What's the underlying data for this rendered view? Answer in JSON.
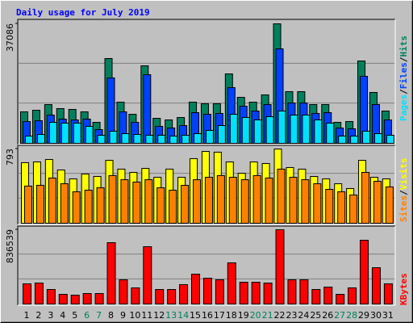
{
  "chart_data": {
    "type": "bar",
    "title": "Daily usage for July 2019",
    "title_color": "#0000ff",
    "categories": [
      "1",
      "2",
      "3",
      "4",
      "5",
      "6",
      "7",
      "8",
      "9",
      "10",
      "11",
      "12",
      "13",
      "14",
      "15",
      "16",
      "17",
      "18",
      "19",
      "20",
      "21",
      "22",
      "23",
      "24",
      "25",
      "26",
      "27",
      "28",
      "29",
      "30",
      "31"
    ],
    "category_colors": [
      "#000000",
      "#000000",
      "#000000",
      "#000000",
      "#000000",
      "#00805c",
      "#00805c",
      "#000000",
      "#000000",
      "#000000",
      "#000000",
      "#000000",
      "#00805c",
      "#00805c",
      "#000000",
      "#000000",
      "#000000",
      "#000000",
      "#000000",
      "#00805c",
      "#00805c",
      "#000000",
      "#000000",
      "#000000",
      "#000000",
      "#000000",
      "#00805c",
      "#00805c",
      "#000000",
      "#000000",
      "#000000"
    ],
    "legend_separator": "/",
    "grid": true,
    "panels": [
      {
        "ylim": [
          0,
          37086
        ],
        "yticks": [
          37086
        ],
        "series": [
          {
            "name": "Hits",
            "color": "#00805c",
            "values": [
              9773,
              10274,
              12028,
              10775,
              10524,
              9773,
              6515,
              26312,
              12780,
              9021,
              24056,
              7768,
              7267,
              8019,
              12780,
              12278,
              12278,
              21550,
              14283,
              12780,
              15035,
              37086,
              16037,
              16037,
              12028,
              12028,
              6515,
              6766,
              25560,
              15787,
              10023
            ]
          },
          {
            "name": "Files",
            "color": "#0040ff",
            "values": [
              6766,
              7017,
              8771,
              7518,
              7267,
              7518,
              4260,
              20299,
              9773,
              6516,
              21301,
              5263,
              4761,
              5513,
              9523,
              9022,
              9272,
              17291,
              11528,
              10024,
              12029,
              29320,
              12530,
              12530,
              9272,
              9523,
              4761,
              4511,
              20800,
              12029,
              7267
            ]
          },
          {
            "name": "Pages",
            "color": "#00e0ff",
            "values": [
              2255,
              2757,
              6516,
              6265,
              6265,
              5263,
              2506,
              3759,
              3007,
              2757,
              2506,
              2506,
              2255,
              2506,
              3007,
              4010,
              5513,
              9022,
              8019,
              7267,
              8270,
              10024,
              8771,
              8771,
              7267,
              6265,
              2255,
              2255,
              3759,
              3007,
              2506
            ]
          }
        ]
      },
      {
        "ylim": [
          0,
          793
        ],
        "yticks": [
          793
        ],
        "series": [
          {
            "name": "Visits",
            "color": "#ffff00",
            "values": [
              647,
              655,
              681,
              569,
              474,
              526,
              500,
              672,
              578,
              543,
              586,
              491,
              578,
              491,
              690,
              767,
              759,
              655,
              534,
              655,
              638,
              793,
              595,
              578,
              500,
              474,
              422,
              371,
              672,
              491,
              474
            ]
          },
          {
            "name": "Sites",
            "color": "#ff8000",
            "values": [
              397,
              405,
              483,
              422,
              336,
              353,
              379,
              509,
              465,
              440,
              465,
              379,
              353,
              405,
              465,
              491,
              509,
              491,
              465,
              509,
              483,
              578,
              491,
              465,
              422,
              362,
              336,
              302,
              543,
              448,
              388
            ]
          }
        ]
      },
      {
        "ylim": [
          0,
          836539
        ],
        "yticks": [
          836539
        ],
        "series": [
          {
            "name": "KBytes",
            "color": "#ff0000",
            "values": [
              227325,
              236418,
              163674,
              109116,
              100023,
              118209,
              118209,
              691068,
              272790,
              181860,
              645603,
              163674,
              163674,
              218232,
              336441,
              290976,
              272790,
              463743,
              245511,
              245511,
              236418,
              836539,
              272790,
              272790,
              163674,
              190953,
              109116,
              181860,
              718347,
              409185,
              227325
            ]
          }
        ]
      }
    ]
  }
}
